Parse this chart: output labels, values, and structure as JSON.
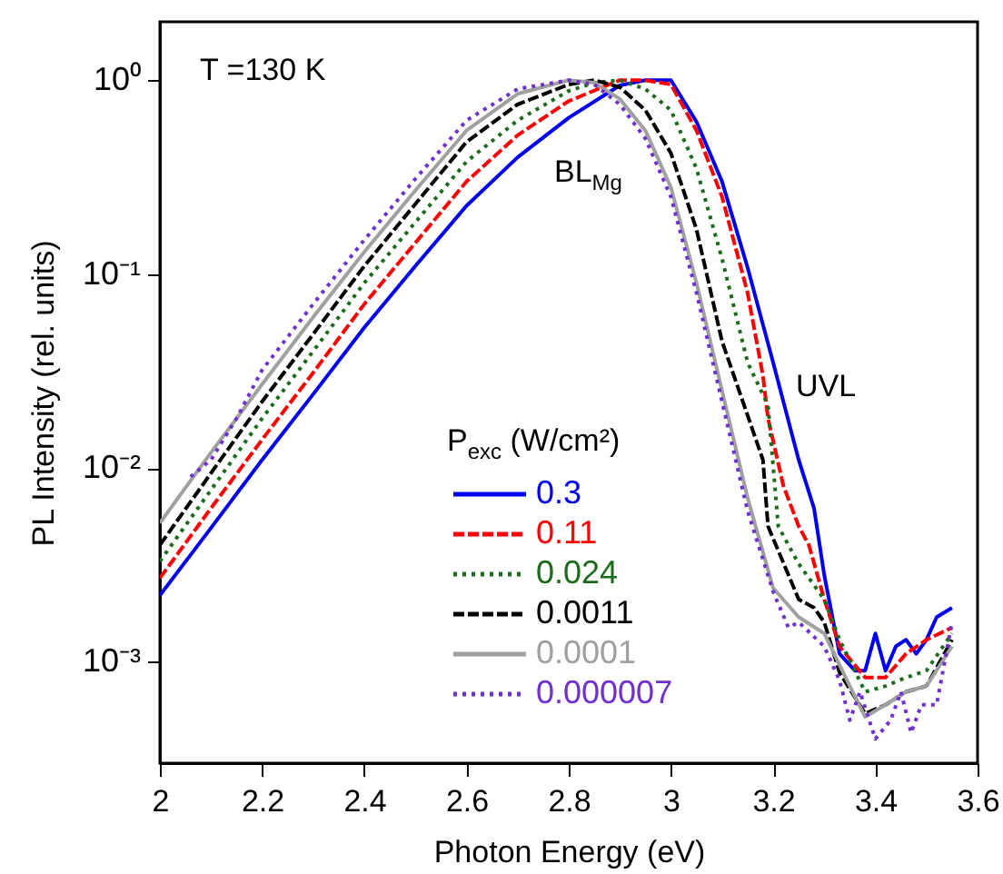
{
  "chart_data": {
    "type": "line",
    "xlabel": "Photon Energy (eV)",
    "ylabel": "PL Intensity (rel. units)",
    "legend_title": "P$_{exc}$ (W/cm²)",
    "annotations": [
      "T =130 K",
      "BL$_{Mg}$",
      "UVL"
    ],
    "xlim": [
      2,
      3.6
    ],
    "xticks": [
      2,
      2.2,
      2.4,
      2.6,
      2.8,
      3,
      3.2,
      3.4,
      3.6
    ],
    "ylim": [
      0.0003,
      2
    ],
    "yticks": [
      {
        "value": 1,
        "label": "10⁰"
      },
      {
        "value": 0.1,
        "label": "10⁻¹"
      },
      {
        "value": 0.01,
        "label": "10⁻²"
      },
      {
        "value": 0.001,
        "label": "10⁻³"
      }
    ],
    "log": "y",
    "grid": false,
    "legend": "bottom",
    "marker": "none",
    "series": [
      {
        "name": "0.3",
        "color": "#0000ee",
        "line_style": "solid",
        "x": [
          2.0,
          2.1,
          2.2,
          2.3,
          2.4,
          2.5,
          2.6,
          2.7,
          2.8,
          2.9,
          2.95,
          3.0,
          3.05,
          3.1,
          3.15,
          3.2,
          3.22,
          3.25,
          3.28,
          3.3,
          3.33,
          3.36,
          3.38,
          3.4,
          3.42,
          3.44,
          3.46,
          3.48,
          3.5,
          3.52,
          3.55
        ],
        "values": [
          0.0022,
          0.0049,
          0.011,
          0.024,
          0.053,
          0.11,
          0.225,
          0.4,
          0.64,
          0.94,
          1.0,
          1.0,
          0.61,
          0.3,
          0.108,
          0.035,
          0.022,
          0.011,
          0.0062,
          0.0028,
          0.0011,
          0.0009,
          0.0009,
          0.0014,
          0.0009,
          0.0012,
          0.0013,
          0.0011,
          0.0013,
          0.0017,
          0.0019
        ]
      },
      {
        "name": "0.11",
        "color": "#ff0000",
        "line_style": "dashed",
        "x": [
          2.0,
          2.1,
          2.2,
          2.3,
          2.4,
          2.5,
          2.6,
          2.7,
          2.8,
          2.9,
          2.95,
          3.0,
          3.05,
          3.1,
          3.15,
          3.18,
          3.19,
          3.22,
          3.25,
          3.27,
          3.3,
          3.33,
          3.38,
          3.42,
          3.46,
          3.5,
          3.55
        ],
        "values": [
          0.0027,
          0.0062,
          0.014,
          0.031,
          0.07,
          0.145,
          0.3,
          0.52,
          0.78,
          1.0,
          1.0,
          0.95,
          0.55,
          0.25,
          0.08,
          0.03,
          0.018,
          0.0081,
          0.005,
          0.004,
          0.0021,
          0.0012,
          0.00083,
          0.00083,
          0.0011,
          0.0013,
          0.0015
        ]
      },
      {
        "name": "0.024",
        "color": "#1a6b1a",
        "line_style": "dotted",
        "x": [
          2.0,
          2.1,
          2.2,
          2.3,
          2.4,
          2.5,
          2.6,
          2.7,
          2.8,
          2.85,
          2.9,
          2.95,
          3.0,
          3.05,
          3.1,
          3.15,
          3.19,
          3.21,
          3.25,
          3.3,
          3.33,
          3.38,
          3.42,
          3.46,
          3.5,
          3.55
        ],
        "values": [
          0.0033,
          0.0077,
          0.018,
          0.04,
          0.09,
          0.185,
          0.38,
          0.62,
          0.88,
          0.97,
          1.0,
          0.9,
          0.7,
          0.35,
          0.12,
          0.035,
          0.021,
          0.005,
          0.0032,
          0.0021,
          0.0013,
          0.0007,
          0.00075,
          0.00083,
          0.0009,
          0.0014
        ]
      },
      {
        "name": "0.0011",
        "color": "#000000",
        "line_style": "dashed",
        "x": [
          2.0,
          2.1,
          2.2,
          2.3,
          2.4,
          2.5,
          2.6,
          2.7,
          2.8,
          2.85,
          2.9,
          2.95,
          3.0,
          3.05,
          3.1,
          3.18,
          3.19,
          3.25,
          3.28,
          3.3,
          3.33,
          3.38,
          3.42,
          3.46,
          3.5,
          3.55
        ],
        "values": [
          0.004,
          0.0094,
          0.022,
          0.049,
          0.11,
          0.23,
          0.48,
          0.75,
          0.95,
          1.0,
          0.92,
          0.7,
          0.42,
          0.17,
          0.045,
          0.011,
          0.005,
          0.0021,
          0.0019,
          0.0016,
          0.00088,
          0.00054,
          0.0006,
          0.0007,
          0.00075,
          0.0013
        ]
      },
      {
        "name": "0.0001",
        "color": "#a0a0a0",
        "line_style": "solid",
        "x": [
          2.0,
          2.1,
          2.2,
          2.3,
          2.4,
          2.5,
          2.6,
          2.7,
          2.8,
          2.85,
          2.9,
          2.95,
          3.0,
          3.05,
          3.1,
          3.15,
          3.2,
          3.25,
          3.3,
          3.35,
          3.38,
          3.42,
          3.46,
          3.5,
          3.55
        ],
        "values": [
          0.0052,
          0.012,
          0.027,
          0.06,
          0.13,
          0.27,
          0.55,
          0.85,
          1.0,
          0.97,
          0.8,
          0.55,
          0.28,
          0.09,
          0.025,
          0.007,
          0.0024,
          0.0017,
          0.0014,
          0.00075,
          0.00052,
          0.0006,
          0.0007,
          0.00075,
          0.0012
        ]
      },
      {
        "name": "0.000007",
        "color": "#7030d0",
        "line_style": "dotted",
        "x": [
          2.06,
          2.1,
          2.15,
          2.2,
          2.3,
          2.4,
          2.5,
          2.6,
          2.7,
          2.8,
          2.85,
          2.9,
          2.95,
          3.0,
          3.05,
          3.1,
          3.15,
          3.2,
          3.23,
          3.25,
          3.3,
          3.33,
          3.35,
          3.37,
          3.4,
          3.43,
          3.45,
          3.47,
          3.49,
          3.52,
          3.55
        ],
        "values": [
          0.009,
          0.011,
          0.018,
          0.032,
          0.07,
          0.15,
          0.31,
          0.62,
          0.9,
          1.0,
          0.95,
          0.75,
          0.5,
          0.25,
          0.08,
          0.022,
          0.006,
          0.0023,
          0.0015,
          0.0016,
          0.0012,
          0.0008,
          0.0005,
          0.0007,
          0.0004,
          0.0005,
          0.0007,
          0.00043,
          0.0006,
          0.0006,
          0.0016
        ]
      }
    ]
  }
}
